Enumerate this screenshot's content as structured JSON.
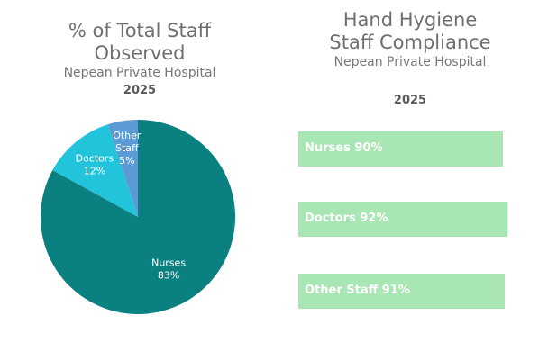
{
  "left_chart": {
    "title": "% of Total Staff Observed",
    "subtitle": "Nepean Private Hospital",
    "year": "2025"
  },
  "right_chart": {
    "title_line1": "Hand Hygiene",
    "title_line2": "Staff Compliance",
    "subtitle": "Nepean Private Hospital",
    "year": "2025"
  },
  "chart_data": [
    {
      "type": "pie",
      "title": "% of Total Staff Observed",
      "subtitle": "Nepean Private Hospital 2025",
      "categories": [
        "Nurses",
        "Doctors",
        "Other Staff"
      ],
      "values": [
        83,
        12,
        5
      ],
      "value_labels": [
        "83%",
        "12%",
        "5%"
      ],
      "colors": [
        "#0a8080",
        "#22c4dc",
        "#5b9bd5"
      ]
    },
    {
      "type": "bar",
      "orientation": "horizontal",
      "title": "Hand Hygiene Staff Compliance",
      "subtitle": "Nepean Private Hospital",
      "xlabel": "2025",
      "categories": [
        "Nurses",
        "Doctors",
        "Other Staff"
      ],
      "values": [
        90,
        92,
        91
      ],
      "bar_labels": [
        "Nurses 90%",
        "Doctors 92%",
        "Other Staff 91%"
      ],
      "color": "#a8e6b3"
    }
  ]
}
